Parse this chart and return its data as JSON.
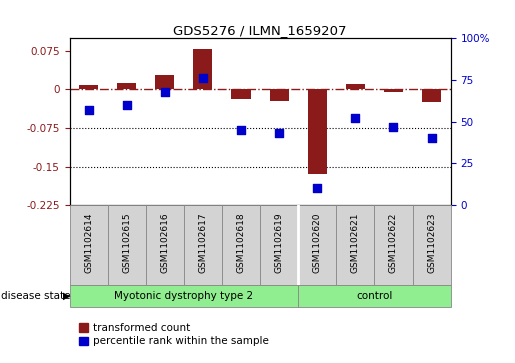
{
  "title": "GDS5276 / ILMN_1659207",
  "samples": [
    "GSM1102614",
    "GSM1102615",
    "GSM1102616",
    "GSM1102617",
    "GSM1102618",
    "GSM1102619",
    "GSM1102620",
    "GSM1102621",
    "GSM1102622",
    "GSM1102623"
  ],
  "transformed_count": [
    0.008,
    0.013,
    0.028,
    0.078,
    -0.018,
    -0.022,
    -0.165,
    0.01,
    -0.005,
    -0.025
  ],
  "percentile_rank": [
    57,
    60,
    68,
    76,
    45,
    43,
    10,
    52,
    47,
    40
  ],
  "groups": [
    {
      "label": "Myotonic dystrophy type 2",
      "start": 0,
      "end": 6,
      "color": "#90EE90"
    },
    {
      "label": "control",
      "start": 6,
      "end": 10,
      "color": "#90EE90"
    }
  ],
  "group_boundary": 6,
  "ylim_left": [
    -0.225,
    0.1
  ],
  "ylim_right": [
    0,
    100
  ],
  "yticks_left": [
    -0.225,
    -0.15,
    -0.075,
    0,
    0.075
  ],
  "yticks_right": [
    0,
    25,
    50,
    75,
    100
  ],
  "dotted_lines": [
    -0.075,
    -0.15
  ],
  "bar_color": "#8B1A1A",
  "scatter_color": "#0000CD",
  "sample_box_color": "#D3D3D3",
  "background_color": "#FFFFFF",
  "disease_state_label": "disease state",
  "legend_items": [
    {
      "label": "transformed count",
      "color": "#8B1A1A"
    },
    {
      "label": "percentile rank within the sample",
      "color": "#0000CD"
    }
  ]
}
